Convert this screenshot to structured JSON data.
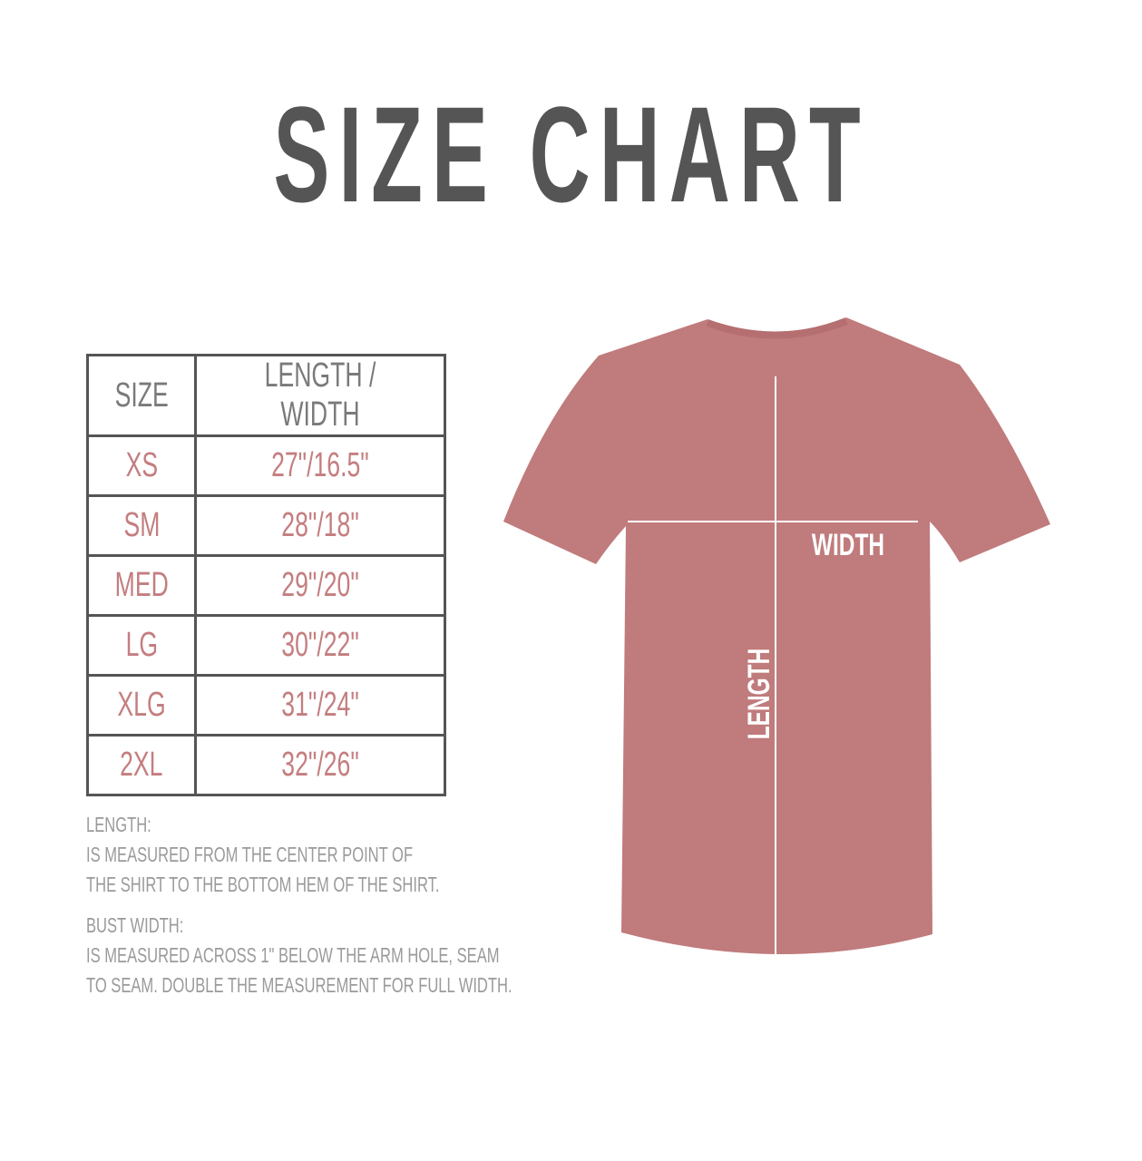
{
  "title": "SIZE CHART",
  "table": {
    "headers": [
      "SIZE",
      "LENGTH / WIDTH"
    ],
    "rows": [
      [
        "XS",
        "27\"/16.5\""
      ],
      [
        "SM",
        "28\"/18\""
      ],
      [
        "MED",
        "29\"/20\""
      ],
      [
        "LG",
        "30\"/22\""
      ],
      [
        "XLG",
        "31\"/24\""
      ],
      [
        "2XL",
        "32\"/26\""
      ]
    ]
  },
  "notes": {
    "length_heading": "LENGTH:",
    "length_line1": "IS MEASURED FROM THE CENTER POINT OF",
    "length_line2": "THE SHIRT TO THE BOTTOM HEM OF THE SHIRT.",
    "width_heading": "BUST WIDTH:",
    "width_line1": "IS MEASURED ACROSS  1\" BELOW THE ARM HOLE, SEAM",
    "width_line2": "TO SEAM. DOUBLE THE MEASUREMENT FOR FULL WIDTH."
  },
  "diagram": {
    "width_label": "WIDTH",
    "length_label": "LENGTH",
    "shirt_color": "#c07b7c",
    "title_color": "#555555",
    "value_color": "#c47e80"
  }
}
